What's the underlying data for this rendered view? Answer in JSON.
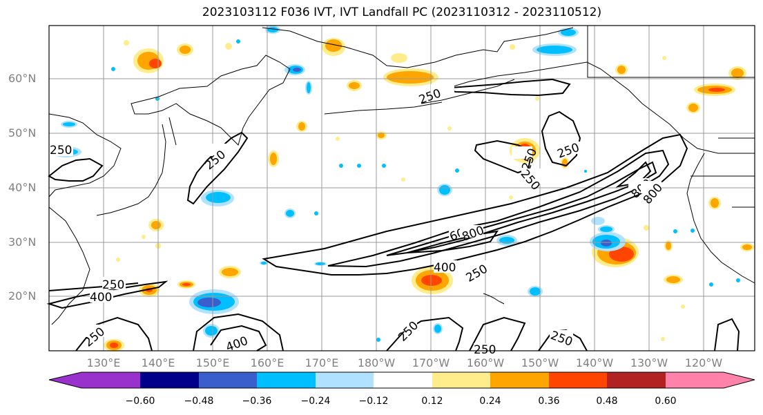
{
  "title": "2023103112 F036 IVT, IVT Landfall PC (2023110312 - 2023110512)",
  "lat_labels": [
    "60°N",
    "50°N",
    "40°N",
    "30°N",
    "20°N"
  ],
  "lon_labels": [
    "130°E",
    "140°E",
    "150°E",
    "160°E",
    "170°E",
    "180°W",
    "170°W",
    "160°W",
    "150°W",
    "140°W",
    "130°W",
    "120°W"
  ],
  "contour_labels": [
    "250",
    "250",
    "250",
    "250",
    "250",
    "250",
    "250",
    "250",
    "250",
    "250",
    "400",
    "400",
    "400",
    "600",
    "800",
    "800",
    "800",
    "250",
    "250"
  ],
  "colorbar": {
    "tick_labels": [
      "−0.60",
      "−0.48",
      "−0.36",
      "−0.24",
      "−0.12",
      "0.12",
      "0.24",
      "0.36",
      "0.48",
      "0.60"
    ],
    "colors": [
      "#9932cc",
      "#00008b",
      "#3a5fcd",
      "#00bfff",
      "#b0e2ff",
      "#ffffff",
      "#ffec8b",
      "#ffa500",
      "#ff4500",
      "#b22222",
      "#ff82ab"
    ]
  }
}
